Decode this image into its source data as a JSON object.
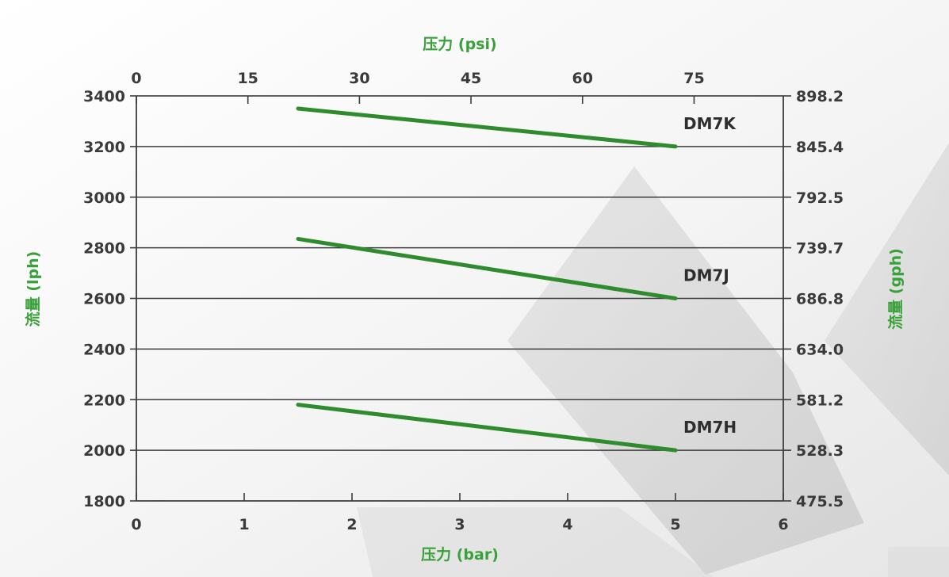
{
  "chart_data": {
    "type": "line",
    "xlabel_bottom": "压力 (bar)",
    "xlabel_top": "压力 (psi)",
    "ylabel_left": "流量 (lph)",
    "ylabel_right": "流量 (gph)",
    "x_ticks": [
      "0",
      "1",
      "2",
      "3",
      "4",
      "5",
      "6"
    ],
    "x_top_ticks": [
      "0",
      "15",
      "30",
      "45",
      "60",
      "75"
    ],
    "y_ticks": [
      "1800",
      "2000",
      "2200",
      "2400",
      "2600",
      "2800",
      "3000",
      "3200",
      "3400"
    ],
    "y_right_ticks": [
      "475.5",
      "528.3",
      "581.2",
      "634.0",
      "686.8",
      "739.7",
      "792.5",
      "845.4",
      "898.2"
    ],
    "xlim": [
      0,
      6
    ],
    "x_top_lim": [
      0,
      87
    ],
    "ylim": [
      1800,
      3400
    ],
    "grid": "horizontal",
    "series": [
      {
        "name": "DM7K",
        "x": [
          1.5,
          5
        ],
        "y": [
          3350,
          3200
        ]
      },
      {
        "name": "DM7J",
        "x": [
          1.5,
          5
        ],
        "y": [
          2835,
          2600
        ]
      },
      {
        "name": "DM7H",
        "x": [
          1.5,
          5
        ],
        "y": [
          2180,
          2000
        ]
      }
    ],
    "line_color": "#2e8b2e",
    "title_color": "#3aa13a"
  }
}
